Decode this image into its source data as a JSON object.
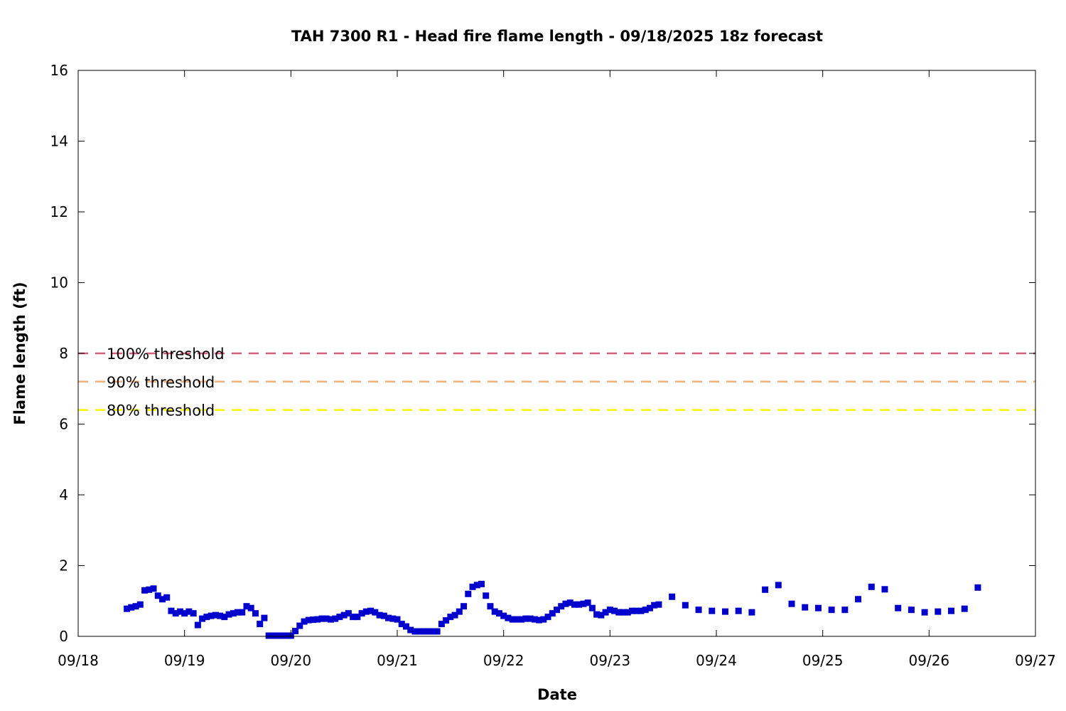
{
  "chart_data": {
    "type": "scatter",
    "title": "TAH 7300 R1 - Head fire flame length - 09/18/2025 18z forecast",
    "xlabel": "Date",
    "ylabel": "Flame length (ft)",
    "x_ticks": [
      "09/18",
      "09/19",
      "09/20",
      "09/21",
      "09/22",
      "09/23",
      "09/24",
      "09/25",
      "09/26",
      "09/27"
    ],
    "y_ticks": [
      "0",
      "2",
      "4",
      "6",
      "8",
      "10",
      "12",
      "14",
      "16"
    ],
    "ylim": [
      0,
      16
    ],
    "xlim": [
      "09/18 00:00",
      "09/27 00:00"
    ],
    "grid": false,
    "legend_placement": "left",
    "thresholds": [
      {
        "name": "100% threshold",
        "value": 8.0,
        "color": "#d95f7f"
      },
      {
        "name": "90% threshold",
        "value": 7.2,
        "color": "#f2b27a"
      },
      {
        "name": "80% threshold",
        "value": 6.4,
        "color": "#f5f500"
      }
    ],
    "series": [
      {
        "color": "#0000cc",
        "x": [
          "09/18 11:00",
          "09/18 12:00",
          "09/18 13:00",
          "09/18 14:00",
          "09/18 15:00",
          "09/18 16:00",
          "09/18 17:00",
          "09/18 18:00",
          "09/18 19:00",
          "09/18 20:00",
          "09/18 21:00",
          "09/18 22:00",
          "09/18 23:00",
          "09/19 00:00",
          "09/19 01:00",
          "09/19 02:00",
          "09/19 03:00",
          "09/19 04:00",
          "09/19 05:00",
          "09/19 06:00",
          "09/19 07:00",
          "09/19 08:00",
          "09/19 09:00",
          "09/19 10:00",
          "09/19 11:00",
          "09/19 12:00",
          "09/19 13:00",
          "09/19 14:00",
          "09/19 15:00",
          "09/19 16:00",
          "09/19 17:00",
          "09/19 18:00",
          "09/19 19:00",
          "09/19 20:00",
          "09/19 21:00",
          "09/19 22:00",
          "09/19 23:00",
          "09/20 00:00",
          "09/20 01:00",
          "09/20 02:00",
          "09/20 03:00",
          "09/20 04:00",
          "09/20 05:00",
          "09/20 06:00",
          "09/20 07:00",
          "09/20 08:00",
          "09/20 09:00",
          "09/20 10:00",
          "09/20 11:00",
          "09/20 12:00",
          "09/20 13:00",
          "09/20 14:00",
          "09/20 15:00",
          "09/20 16:00",
          "09/20 17:00",
          "09/20 18:00",
          "09/20 19:00",
          "09/20 20:00",
          "09/20 21:00",
          "09/20 22:00",
          "09/20 23:00",
          "09/21 00:00",
          "09/21 01:00",
          "09/21 02:00",
          "09/21 03:00",
          "09/21 04:00",
          "09/21 05:00",
          "09/21 06:00",
          "09/21 07:00",
          "09/21 08:00",
          "09/21 09:00",
          "09/21 10:00",
          "09/21 11:00",
          "09/21 12:00",
          "09/21 13:00",
          "09/21 14:00",
          "09/21 15:00",
          "09/21 16:00",
          "09/21 17:00",
          "09/21 18:00",
          "09/21 19:00",
          "09/21 20:00",
          "09/21 21:00",
          "09/21 22:00",
          "09/21 23:00",
          "09/22 00:00",
          "09/22 01:00",
          "09/22 02:00",
          "09/22 03:00",
          "09/22 04:00",
          "09/22 05:00",
          "09/22 06:00",
          "09/22 07:00",
          "09/22 08:00",
          "09/22 09:00",
          "09/22 10:00",
          "09/22 11:00",
          "09/22 12:00",
          "09/22 13:00",
          "09/22 14:00",
          "09/22 15:00",
          "09/22 16:00",
          "09/22 17:00",
          "09/22 18:00",
          "09/22 19:00",
          "09/22 20:00",
          "09/22 21:00",
          "09/22 22:00",
          "09/22 23:00",
          "09/23 00:00",
          "09/23 01:00",
          "09/23 02:00",
          "09/23 03:00",
          "09/23 04:00",
          "09/23 05:00",
          "09/23 06:00",
          "09/23 07:00",
          "09/23 08:00",
          "09/23 09:00",
          "09/23 10:00",
          "09/23 11:00",
          "09/23 14:00",
          "09/23 17:00",
          "09/23 20:00",
          "09/23 23:00",
          "09/24 02:00",
          "09/24 05:00",
          "09/24 08:00",
          "09/24 11:00",
          "09/24 14:00",
          "09/24 17:00",
          "09/24 20:00",
          "09/24 23:00",
          "09/25 02:00",
          "09/25 05:00",
          "09/25 08:00",
          "09/25 11:00",
          "09/25 14:00",
          "09/25 17:00",
          "09/25 20:00",
          "09/25 23:00",
          "09/26 02:00",
          "09/26 05:00",
          "09/26 08:00",
          "09/26 11:00"
        ],
        "y": [
          0.78,
          0.82,
          0.85,
          0.9,
          1.3,
          1.32,
          1.35,
          1.15,
          1.05,
          1.1,
          0.72,
          0.65,
          0.7,
          0.65,
          0.7,
          0.65,
          0.32,
          0.5,
          0.55,
          0.58,
          0.6,
          0.58,
          0.55,
          0.62,
          0.65,
          0.68,
          0.68,
          0.85,
          0.8,
          0.65,
          0.35,
          0.52,
          0.02,
          0.02,
          0.02,
          0.02,
          0.02,
          0.02,
          0.15,
          0.3,
          0.42,
          0.46,
          0.47,
          0.48,
          0.5,
          0.5,
          0.48,
          0.5,
          0.55,
          0.6,
          0.65,
          0.55,
          0.55,
          0.65,
          0.7,
          0.72,
          0.68,
          0.6,
          0.58,
          0.52,
          0.5,
          0.48,
          0.35,
          0.28,
          0.18,
          0.14,
          0.14,
          0.14,
          0.14,
          0.14,
          0.14,
          0.35,
          0.45,
          0.55,
          0.6,
          0.7,
          0.85,
          1.2,
          1.4,
          1.45,
          1.48,
          1.15,
          0.85,
          0.7,
          0.65,
          0.58,
          0.52,
          0.48,
          0.48,
          0.48,
          0.5,
          0.5,
          0.48,
          0.46,
          0.48,
          0.55,
          0.65,
          0.75,
          0.85,
          0.92,
          0.95,
          0.9,
          0.9,
          0.92,
          0.95,
          0.8,
          0.62,
          0.6,
          0.68,
          0.75,
          0.72,
          0.68,
          0.68,
          0.68,
          0.72,
          0.72,
          0.72,
          0.75,
          0.8,
          0.88,
          0.9,
          1.12,
          0.88,
          0.75,
          0.72,
          0.7,
          0.72,
          0.68,
          1.32,
          1.45,
          0.92,
          0.82,
          0.8,
          0.75,
          0.75,
          1.05,
          1.4,
          1.33,
          0.8,
          0.75,
          0.68,
          0.7,
          0.72,
          0.78,
          1.38
        ]
      }
    ]
  }
}
